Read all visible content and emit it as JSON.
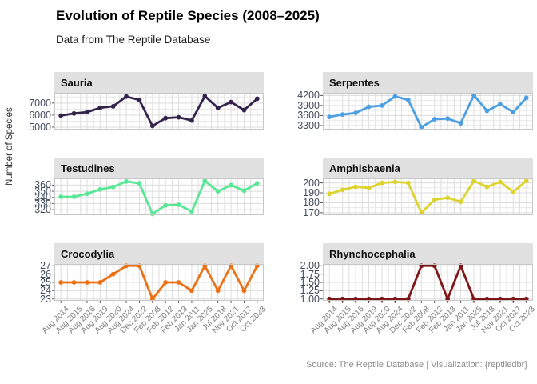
{
  "chart_data": {
    "type": "line",
    "faceted": true,
    "facet_layout": "3x2",
    "title": "Evolution of Reptile Species (2008–2025)",
    "subtitle": "Data from The Reptile Database",
    "ylabel": "Number of Species",
    "caption": "Source: The Reptile Database | Visualization: {reptiledbr}",
    "legend": "none",
    "grid": true,
    "x_tick_rotation_deg": 45,
    "categories": [
      "Aug 2014",
      "Aug 2015",
      "Aug 2016",
      "Aug 2019",
      "Aug 2020",
      "Aug 2024",
      "Dec 2022",
      "Feb 2008",
      "Feb 2012",
      "Feb 2013",
      "Jan 2011",
      "Jan 2025",
      "Jul 2018",
      "Nov 2021",
      "Oct 2017",
      "Oct 2023"
    ],
    "facets": [
      {
        "name": "Sauria",
        "color": "#33234a",
        "ylim": [
          4800,
          7850
        ],
        "yticks": [
          5000,
          6000,
          7000
        ],
        "ytick_labels": [
          "5000",
          "6000",
          "7000"
        ],
        "values": [
          5960,
          6140,
          6250,
          6600,
          6730,
          7540,
          7250,
          5100,
          5750,
          5820,
          5560,
          7570,
          6600,
          7080,
          6420,
          7360
        ]
      },
      {
        "name": "Serpentes",
        "color": "#4d9fe3",
        "ylim": [
          3180,
          4280
        ],
        "yticks": [
          3300,
          3600,
          3900,
          4200
        ],
        "ytick_labels": [
          "3300",
          "3600",
          "3900",
          "4200"
        ],
        "values": [
          3560,
          3630,
          3680,
          3860,
          3900,
          4170,
          4070,
          3250,
          3490,
          3510,
          3370,
          4210,
          3740,
          3940,
          3700,
          4130
        ]
      },
      {
        "name": "Testudines",
        "color": "#57e795",
        "ylim": [
          311,
          371
        ],
        "yticks": [
          320,
          330,
          340,
          350,
          360
        ],
        "ytick_labels": [
          "320",
          "330",
          "340",
          "350",
          "360"
        ],
        "values": [
          341,
          341,
          346,
          353,
          357,
          366,
          363,
          313,
          327,
          328,
          317,
          367,
          350,
          360,
          351,
          363
        ]
      },
      {
        "name": "Amphisbaenia",
        "color": "#ddd32f",
        "ylim": [
          167.5,
          204.5
        ],
        "yticks": [
          170,
          180,
          190,
          200
        ],
        "ytick_labels": [
          "170",
          "180",
          "190",
          "200"
        ],
        "values": [
          189,
          193,
          196,
          195,
          200,
          201,
          200,
          170,
          183,
          185,
          181,
          202,
          196,
          201,
          191,
          202
        ]
      },
      {
        "name": "Crocodylia",
        "color": "#ed7014",
        "ylim": [
          22.78,
          27.22
        ],
        "yticks": [
          23,
          24,
          25,
          26,
          27
        ],
        "ytick_labels": [
          "23",
          "24",
          "25",
          "26",
          "27"
        ],
        "values": [
          25,
          25,
          25,
          25,
          26,
          27,
          27,
          23,
          25,
          25,
          24,
          27,
          24,
          27,
          24,
          27
        ]
      },
      {
        "name": "Rhynchocephalia",
        "color": "#7e1517",
        "ylim": [
          0.945,
          2.055
        ],
        "yticks": [
          1.0,
          1.25,
          1.5,
          1.75,
          2.0
        ],
        "ytick_labels": [
          "1.00",
          "1.25",
          "1.50",
          "1.75",
          "2.00"
        ],
        "values": [
          1,
          1,
          1,
          1,
          1,
          1,
          1,
          2,
          2,
          1,
          2,
          1,
          1,
          1,
          1,
          1
        ]
      }
    ]
  }
}
